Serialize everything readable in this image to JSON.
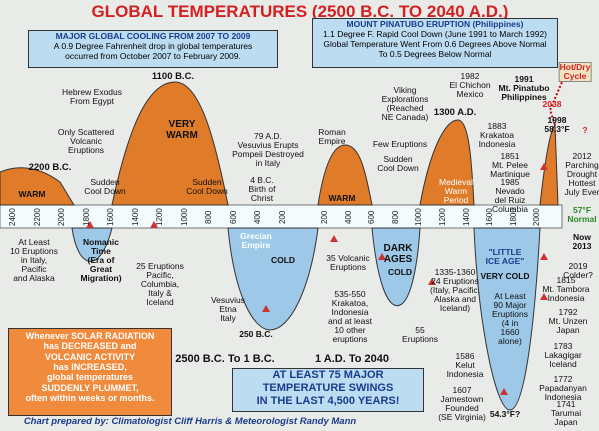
{
  "title": "GLOBAL TEMPERATURES (2500 B.C. TO 2040 A.D.)",
  "boxes": [
    {
      "heading": "MAJOR GLOBAL COOLING FROM 2007 TO 2009",
      "text": "A 0.9 Degree Fahrenheit drop in global temperatures\noccurred from October 2007 to February 2009."
    },
    {
      "heading": "MOUNT PINATUBO ERUPTION (Philippines)",
      "text": "1.1 Degree F. Rapid Cool Down (June 1991 to March 1992)\nGlobal Temperature Went From 0.6 Degrees Above Normal\nTo 0.5 Degrees Below Normal"
    },
    {
      "text": "Whenever SOLAR RADIATION\nhas DECREASED and\nVOLCANIC ACTIVITY\nhas INCREASED,\nglobal temperatures\nSUDDENLY PLUMMET,\noften within weeks or months."
    },
    {
      "text": "AT LEAST 75 MAJOR\nTEMPERATURE SWINGS\nIN THE LAST 4,500 YEARS!"
    }
  ],
  "eras": [
    "2500 B.C. To 1 B.C.",
    "1 A.D. To 2040"
  ],
  "credit": "Chart prepared by: Climatologist Cliff Harris & Meteorologist Randy Mann",
  "x_axis": {
    "bc": [
      2400,
      2200,
      2000,
      1800,
      1600,
      1400,
      1200,
      1000,
      800,
      600,
      400,
      200
    ],
    "ad": [
      200,
      400,
      600,
      800,
      1000,
      1200,
      1400,
      1600,
      1800,
      2000
    ]
  },
  "annotations": [
    "Hot/Dry\nCycle",
    "2038",
    "1100 B.C.",
    "Hebrew Exodus\nFrom Egypt",
    "VERY\nWARM",
    "Only Scattered\nVolcanic\nEruptions",
    "2200 B.C.",
    "Sudden\nCool Down",
    "WARM",
    "Sudden\nCool Down",
    "79 A.D.\nVesuvius Erupts\nPompeii Destroyed\nin Italy",
    "4 B.C.\nBirth of\nChrist",
    "Roman\nEmpire",
    "WARM",
    "Viking\nExplorations\n(Reached\nNE Canada)",
    "Few Eruptions",
    "Sudden\nCool Down",
    "1300 A.D.",
    "1982\nEl Chichon\nMexico",
    "1991\nMt. Pinatubo\nPhilippines",
    "1883\nKrakatoa\nIndonesia",
    "1851\nMt. Pelee\nMartinique",
    "1985\nNevado\ndel Ruiz\nColumbia",
    "Medieval\nWarm\nPeriod",
    "1998\n58.3°F",
    "?",
    "2012\nParching\nDrought\nHottest\nJuly Ever",
    "57°F\nNormal",
    "Now\n2013",
    "2019\nColder?",
    "1815\nMt. Tambora\nIndonesia",
    "1792\nMt. Unzen\nJapan",
    "1783\nLakagigar\nIceland",
    "1772\nPapadanyan\nIndonesia",
    "1741\nTarumai\nJapan",
    "At Least\n10 Eruptions\nin Italy,\nPacific\nand Alaska",
    "Nomanic\nTime\n(Era of\nGreat\nMigration)",
    "25 Eruptions\nPacific,\nColumbia,\nItaly &\nIceland",
    "Grecian\nEmpire",
    "COLD",
    "Vesuvius\nEtna\nItaly",
    "250 B.C.",
    "35 Volcanic\nEruptions",
    "535-550\nKrakatoa,\nIndonesia\nand at least\n10 other\neruptions",
    "DARK\nAGES",
    "COLD",
    "55\nEruptions",
    "1335-1360\n24 Eruptions\n(Italy, Pacific,\nAlaska and\nIceland)",
    "\"LITTLE\nICE AGE\"",
    "VERY COLD",
    "At Least\n90 Major\nEruptions\n(4 in\n1660\nalone)",
    "1586\nKelut\nIndonesia",
    "1607\nJamestown\nFounded\n(SE Virginia)",
    "54.3°F?"
  ]
}
